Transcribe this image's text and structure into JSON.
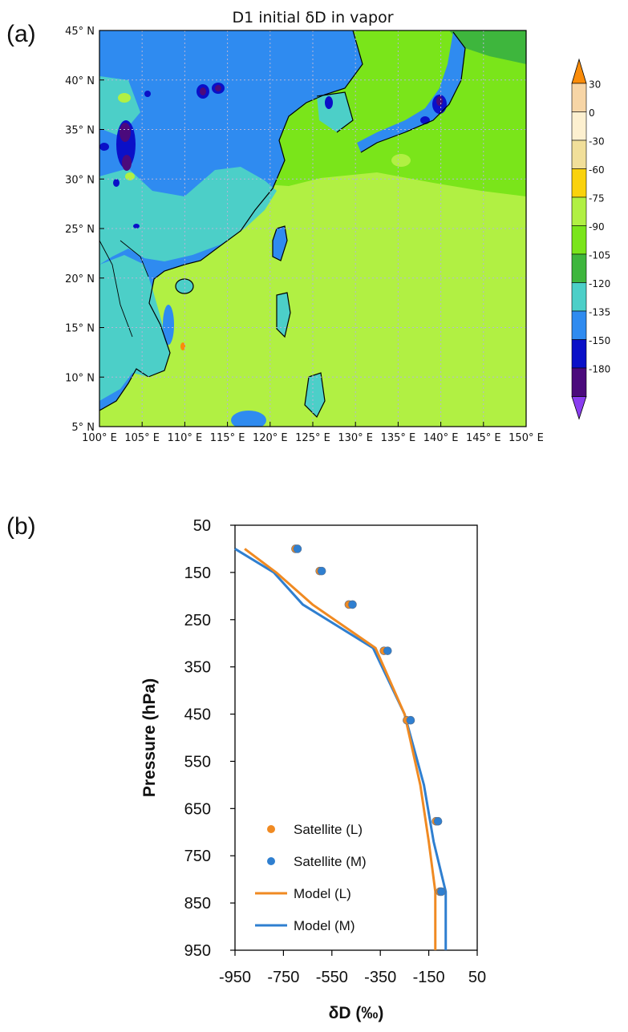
{
  "panel_a_label": "(a)",
  "panel_b_label": "(b)",
  "chart_data": [
    {
      "type": "heatmap",
      "title": "D1 initial δD in vapor",
      "x_ticks": [
        "100° E",
        "105° E",
        "110° E",
        "115° E",
        "120° E",
        "125° E",
        "130° E",
        "135° E",
        "140° E",
        "145° E",
        "150° E"
      ],
      "y_ticks": [
        "45° N",
        "40° N",
        "35° N",
        "30° N",
        "25° N",
        "20° N",
        "15° N",
        "10° N",
        "5° N"
      ],
      "xlim": [
        100,
        150
      ],
      "ylim": [
        5,
        45
      ],
      "grid": true,
      "colorbar": {
        "labels": [
          "30",
          "0",
          "-30",
          "-60",
          "-75",
          "-90",
          "-105",
          "-120",
          "-135",
          "-150",
          "-180"
        ],
        "colors": [
          "#f7d5a6",
          "#fdf0d0",
          "#f1df9a",
          "#fad20c",
          "#b1f043",
          "#7ae51a",
          "#3eb63d",
          "#4ccfc8",
          "#2f8bf0",
          "#0a10c8",
          "#4b0a7c"
        ],
        "extend_top_color": "#fa8c0a",
        "extend_bottom_color": "#8a3df0"
      },
      "colors": {
        "ocean_south": "#b1f043",
        "ocean_north": "#7ae51a",
        "land_main": "#2f8bf0",
        "land_low": "#4ccfc8",
        "deep": "#0a10c8",
        "deepest": "#4b0a7c",
        "mid_green": "#3eb63d",
        "coast": "#000000",
        "grid": "#b5b5d8"
      }
    },
    {
      "type": "line",
      "xlabel": "δD (‰)",
      "ylabel": "Pressure (hPa)",
      "xlim": [
        -950,
        50
      ],
      "ylim": [
        950,
        50
      ],
      "x_ticks": [
        -950,
        -750,
        -550,
        -350,
        -150,
        50
      ],
      "y_ticks": [
        50,
        150,
        250,
        350,
        450,
        550,
        650,
        750,
        850,
        950
      ],
      "legend_position": "lower-left",
      "series": [
        {
          "name": "Satellite (L)",
          "kind": "markers",
          "color": "#f08a22",
          "points": [
            [
              -700,
              100
            ],
            [
              -600,
              147
            ],
            [
              -480,
              218
            ],
            [
              -335,
              316
            ],
            [
              -240,
              463
            ],
            [
              -120,
              677
            ],
            [
              -104,
              826
            ]
          ]
        },
        {
          "name": "Satellite (M)",
          "kind": "markers",
          "color": "#2f7fd0",
          "points": [
            [
              -692,
              100
            ],
            [
              -592,
              147
            ],
            [
              -465,
              218
            ],
            [
              -320,
              316
            ],
            [
              -225,
              463
            ],
            [
              -112,
              677
            ],
            [
              -98,
              826
            ]
          ]
        },
        {
          "name": "Model (L)",
          "kind": "line",
          "color": "#f08a22",
          "points": [
            [
              -910,
              100
            ],
            [
              -780,
              150
            ],
            [
              -630,
              218
            ],
            [
              -370,
              310
            ],
            [
              -250,
              450
            ],
            [
              -185,
              600
            ],
            [
              -150,
              720
            ],
            [
              -123,
              826
            ],
            [
              -123,
              950
            ]
          ]
        },
        {
          "name": "Model (M)",
          "kind": "line",
          "color": "#2f7fd0",
          "points": [
            [
              -950,
              100
            ],
            [
              -790,
              150
            ],
            [
              -670,
              218
            ],
            [
              -380,
              310
            ],
            [
              -250,
              450
            ],
            [
              -170,
              600
            ],
            [
              -130,
              720
            ],
            [
              -80,
              826
            ],
            [
              -80,
              950
            ]
          ]
        }
      ]
    }
  ]
}
